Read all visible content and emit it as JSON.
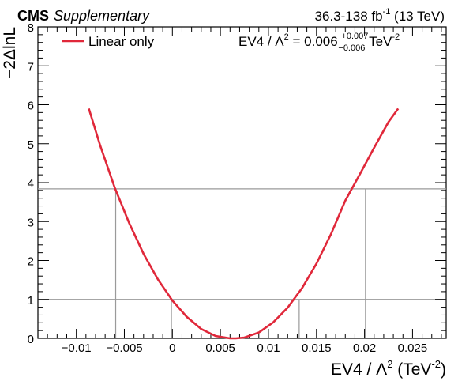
{
  "header": {
    "cms_label": "CMS",
    "supplementary_label": "Supplementary",
    "lumi_prefix": "36.3-138 fb",
    "lumi_exponent": "-1",
    "lumi_suffix": " (13 TeV)"
  },
  "result": {
    "prefix": "EV4 / Λ",
    "prefix_exp": "2",
    "equals": " = 0.006 ",
    "up": "+0.007",
    "down": "−0.006",
    "unit": " TeV",
    "unit_exp": "-2",
    "color": "#e0283a"
  },
  "legend": {
    "label": "Linear only",
    "placement": "top-left"
  },
  "chart_data": {
    "type": "line",
    "xlabel": "EV4 / Λ",
    "xlabel_exp": "2",
    "xlabel_unit_prefix": " (TeV",
    "xlabel_unit_exp": "-2",
    "xlabel_unit_suffix": ")",
    "ylabel": "−2ΔlnL",
    "xlim": [
      -0.014,
      0.0285
    ],
    "ylim": [
      0,
      8
    ],
    "x_ticks": [
      -0.01,
      -0.005,
      0,
      0.005,
      0.01,
      0.015,
      0.02,
      0.025
    ],
    "x_tick_labels": [
      "−0.01",
      "−0.005",
      "0",
      "0.005",
      "0.01",
      "0.015",
      "0.02",
      "0.025"
    ],
    "y_ticks": [
      0,
      1,
      2,
      3,
      4,
      5,
      6,
      7,
      8
    ],
    "y_tick_labels": [
      "0",
      "1",
      "2",
      "3",
      "4",
      "5",
      "6",
      "7",
      "8"
    ],
    "series": [
      {
        "name": "Linear only",
        "color": "#e0283a",
        "x": [
          -0.0087,
          -0.0075,
          -0.006,
          -0.0045,
          -0.003,
          -0.0015,
          0.0,
          0.0015,
          0.003,
          0.0045,
          0.006,
          0.0066,
          0.0075,
          0.009,
          0.0105,
          0.012,
          0.0135,
          0.015,
          0.0165,
          0.018,
          0.0195,
          0.021,
          0.0225,
          0.0235
        ],
        "y": [
          5.9,
          4.94,
          3.87,
          2.96,
          2.17,
          1.51,
          0.97,
          0.55,
          0.24,
          0.06,
          0.0,
          0.0,
          0.02,
          0.15,
          0.41,
          0.79,
          1.29,
          1.92,
          2.67,
          3.54,
          4.21,
          4.9,
          5.56,
          5.9
        ]
      }
    ],
    "reference_lines": {
      "y": [
        1,
        3.84
      ],
      "x_at_1": [
        -0.0001,
        0.0132
      ],
      "x_at_3.84": [
        -0.0059,
        0.0201
      ]
    },
    "grid": false
  }
}
